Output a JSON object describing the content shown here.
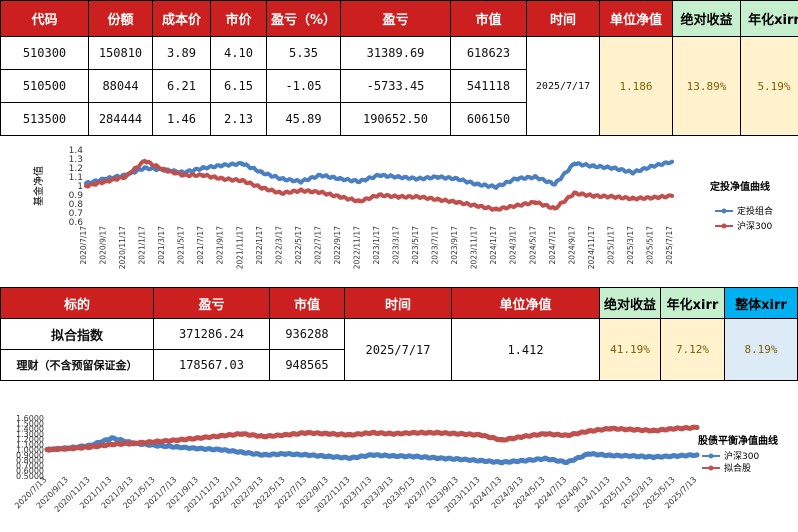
{
  "table1": {
    "headers": [
      "代码",
      "份额",
      "成本价",
      "市价",
      "盈亏（%）",
      "盈亏",
      "市值",
      "时间",
      "单位净值",
      "绝对收益",
      "年化xirr"
    ],
    "rows": [
      [
        "510300",
        "150810",
        "3.89",
        "4.10",
        "5.35",
        "31389.69",
        "618623"
      ],
      [
        "510500",
        "88044",
        "6.21",
        "6.15",
        "-1.05",
        "-5733.45",
        "541118"
      ],
      [
        "513500",
        "284444",
        "1.46",
        "2.13",
        "45.89",
        "190652.50",
        "606150"
      ]
    ],
    "date": "2025/7/17",
    "unit_nav": "1.186",
    "abs_return": "13.89%",
    "xirr": "5.19%"
  },
  "table2": {
    "headers": [
      "标的",
      "盈亏",
      "市值",
      "时间",
      "单位净值",
      "绝对收益",
      "年化xirr",
      "整体xirr"
    ],
    "rows": [
      [
        "拟合指数",
        "371286.24",
        "936288"
      ],
      [
        "理财（不含预留保证金）",
        "178567.03",
        "948565"
      ]
    ],
    "date": "2025/7/17",
    "unit_nav": "1.412",
    "abs_return": "41.19%",
    "xirr": "7.12%",
    "overall_xirr": "8.19%"
  },
  "colors": {
    "blue": "#4a7fc1",
    "red": "#c0504d",
    "header_red": "#cc1f1f",
    "green_fill": "#c6efce",
    "yellow_fill": "#fff2cc",
    "blue_header": "#00b0f0"
  },
  "chart_data": [
    {
      "type": "line",
      "title": "定投净值曲线",
      "ylabel": "基金净值",
      "ylim": [
        0.6,
        1.4
      ],
      "yticks": [
        "0.6",
        "0.7",
        "0.8",
        "0.9",
        "1",
        "1.1",
        "1.2",
        "1.3",
        "1.4"
      ],
      "x": [
        "2020/7/17",
        "2020/9/17",
        "2020/11/17",
        "2021/1/17",
        "2021/3/17",
        "2021/5/17",
        "2021/7/17",
        "2021/9/17",
        "2021/11/17",
        "2022/1/17",
        "2022/3/17",
        "2022/5/17",
        "2022/7/17",
        "2022/9/17",
        "2022/11/17",
        "2023/1/17",
        "2023/3/17",
        "2023/5/17",
        "2023/7/17",
        "2023/9/17",
        "2023/11/17",
        "2024/1/17",
        "2024/3/17",
        "2024/5/17",
        "2024/7/17",
        "2024/9/17",
        "2024/11/17",
        "2025/1/17",
        "2025/3/17",
        "2025/5/17",
        "2025/7/17"
      ],
      "legend_position": "right",
      "series": [
        {
          "name": "定投组合",
          "color": "#4a7fc1",
          "values": [
            1.03,
            1.08,
            1.12,
            1.2,
            1.18,
            1.15,
            1.2,
            1.23,
            1.25,
            1.15,
            1.08,
            1.05,
            1.12,
            1.08,
            1.05,
            1.12,
            1.1,
            1.08,
            1.1,
            1.08,
            1.02,
            0.99,
            1.08,
            1.1,
            1.02,
            1.25,
            1.22,
            1.2,
            1.15,
            1.22,
            1.27
          ]
        },
        {
          "name": "沪深300",
          "color": "#c0504d",
          "values": [
            1.0,
            1.05,
            1.1,
            1.28,
            1.18,
            1.12,
            1.12,
            1.08,
            1.06,
            0.98,
            0.92,
            0.95,
            0.93,
            0.88,
            0.83,
            0.9,
            0.88,
            0.88,
            0.85,
            0.82,
            0.78,
            0.74,
            0.78,
            0.82,
            0.75,
            0.92,
            0.89,
            0.88,
            0.86,
            0.87,
            0.89
          ]
        }
      ]
    },
    {
      "type": "line",
      "title": "股债平衡净值曲线",
      "ylim": [
        0.5,
        1.6
      ],
      "yticks": [
        "0.5000",
        "0.6000",
        "0.7000",
        "0.8000",
        "0.9000",
        "1.0000",
        "1.1000",
        "1.2000",
        "1.3000",
        "1.4000",
        "1.5000",
        "1.6000"
      ],
      "x": [
        "2020/7/13",
        "2020/9/13",
        "2020/11/13",
        "2021/1/13",
        "2021/3/13",
        "2021/5/13",
        "2021/7/13",
        "2021/9/13",
        "2021/11/13",
        "2022/1/13",
        "2022/3/13",
        "2022/5/13",
        "2022/7/13",
        "2022/9/13",
        "2022/11/13",
        "2023/1/13",
        "2023/3/13",
        "2023/5/13",
        "2023/7/13",
        "2023/9/13",
        "2023/11/13",
        "2024/1/13",
        "2024/3/13",
        "2024/5/13",
        "2024/7/13",
        "2024/9/13",
        "2024/11/13",
        "2025/1/13",
        "2025/3/13",
        "2025/5/13",
        "2025/7/13"
      ],
      "legend_position": "right",
      "series": [
        {
          "name": "沪深300",
          "color": "#4a7fc1",
          "values": [
            1.0,
            1.03,
            1.08,
            1.22,
            1.12,
            1.08,
            1.05,
            1.02,
            1.0,
            0.95,
            0.9,
            0.92,
            0.9,
            0.87,
            0.84,
            0.9,
            0.88,
            0.87,
            0.84,
            0.82,
            0.79,
            0.76,
            0.79,
            0.83,
            0.76,
            0.92,
            0.89,
            0.88,
            0.86,
            0.88,
            0.9
          ]
        },
        {
          "name": "拟合股",
          "color": "#c0504d",
          "values": [
            1.0,
            1.02,
            1.05,
            1.1,
            1.12,
            1.15,
            1.18,
            1.22,
            1.26,
            1.3,
            1.25,
            1.28,
            1.32,
            1.3,
            1.28,
            1.32,
            1.3,
            1.32,
            1.32,
            1.3,
            1.28,
            1.18,
            1.25,
            1.3,
            1.27,
            1.35,
            1.4,
            1.38,
            1.36,
            1.4,
            1.42
          ]
        }
      ]
    }
  ]
}
